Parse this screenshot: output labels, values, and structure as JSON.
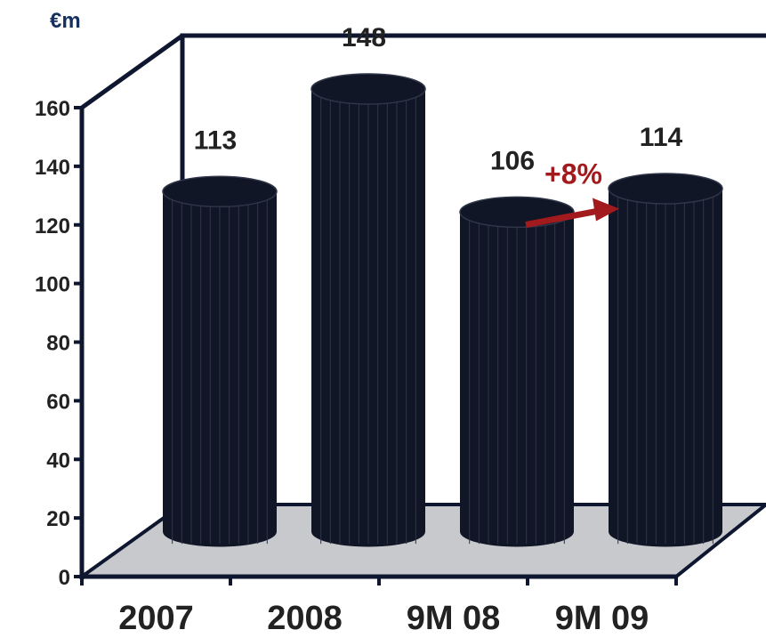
{
  "chart_data": {
    "type": "bar",
    "unit": "€m",
    "categories": [
      "2007",
      "2008",
      "9M 08",
      "9M 09"
    ],
    "values": [
      113,
      148,
      106,
      114
    ],
    "data_labels": [
      "113",
      "148",
      "106",
      "114"
    ],
    "ylim": [
      0,
      160
    ],
    "yticks": [
      0,
      20,
      40,
      60,
      80,
      100,
      120,
      140,
      160
    ],
    "grid": false,
    "legend": "none",
    "annotation": {
      "text": "+8%",
      "from_category": "9M 08",
      "to_category": "9M 09"
    },
    "colors": {
      "bar": "#111627",
      "bar_line": "#2f3547",
      "floor": "#c8c9cd",
      "frame": "#0f1730",
      "annotation": "#a31a1e",
      "unit": "#16305f"
    }
  }
}
